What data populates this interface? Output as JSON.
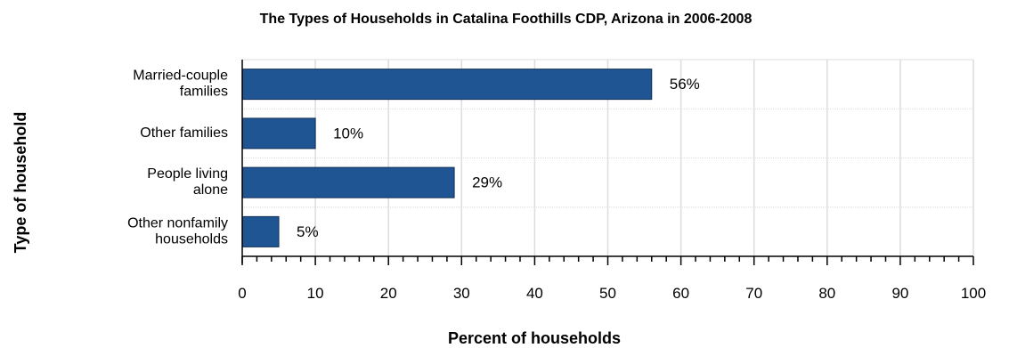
{
  "chart_data": {
    "type": "bar",
    "orientation": "horizontal",
    "title": "The Types of Households in Catalina Foothills CDP, Arizona in 2006-2008",
    "xlabel": "Percent of households",
    "ylabel": "Type of household",
    "categories": [
      [
        "Married-couple",
        "families"
      ],
      [
        "Other families"
      ],
      [
        "People living",
        "alone"
      ],
      [
        "Other nonfamily",
        "households"
      ]
    ],
    "values": [
      56,
      10,
      29,
      5
    ],
    "value_labels": [
      "56%",
      "10%",
      "29%",
      "5%"
    ],
    "xlim": [
      0,
      100
    ],
    "xticks": [
      0,
      10,
      20,
      30,
      40,
      50,
      60,
      70,
      80,
      90,
      100
    ],
    "xtick_labels": [
      "0",
      "10",
      "20",
      "30",
      "40",
      "50",
      "60",
      "70",
      "80",
      "90",
      "100"
    ],
    "grid": true,
    "colors": {
      "bar_fill": "#1f5592",
      "bar_stroke": "#0f2f57",
      "grid": "#dcdcdc",
      "axis": "#000000"
    }
  }
}
